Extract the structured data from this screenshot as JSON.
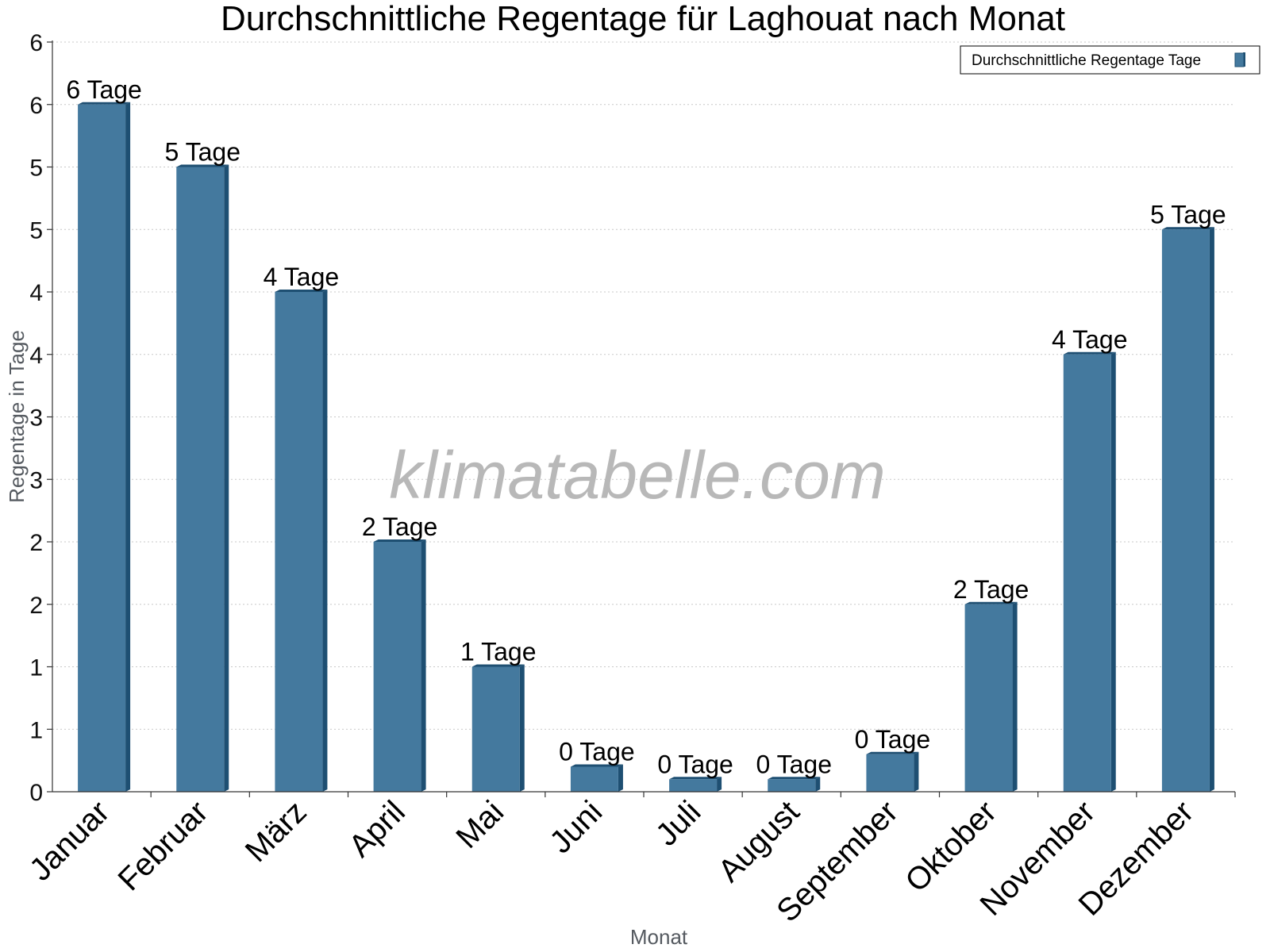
{
  "chart_data": {
    "type": "bar",
    "title": "Durchschnittliche Regentage für Laghouat nach Monat",
    "xlabel": "Monat",
    "ylabel": "Regentage in Tage",
    "categories": [
      "Januar",
      "Februar",
      "März",
      "April",
      "Mai",
      "Juni",
      "Juli",
      "August",
      "September",
      "Oktober",
      "November",
      "Dezember"
    ],
    "series": [
      {
        "name": "Durchschnittliche Regentage Tage",
        "values": [
          5.5,
          5.0,
          4.0,
          2.0,
          1.0,
          0.2,
          0.1,
          0.1,
          0.3,
          1.5,
          3.5,
          4.5
        ],
        "labels": [
          "6 Tage",
          "5 Tage",
          "4 Tage",
          "2 Tage",
          "1 Tage",
          "0 Tage",
          "0 Tage",
          "0 Tage",
          "0 Tage",
          "2 Tage",
          "4 Tage",
          "5 Tage"
        ],
        "color": "#44799e",
        "side_color": "#1e4f72"
      }
    ],
    "ylim": [
      0,
      6
    ],
    "yticks": [
      0,
      0.5,
      1,
      1.5,
      2,
      2.5,
      3,
      3.5,
      4,
      4.5,
      5,
      5.5,
      6
    ],
    "ytick_labels": [
      "0",
      "1",
      "1",
      "2",
      "2",
      "3",
      "3",
      "4",
      "4",
      "5",
      "5",
      "6",
      "6"
    ],
    "grid": true,
    "legend_position": "top-right",
    "watermark": "klimatabelle.com"
  }
}
